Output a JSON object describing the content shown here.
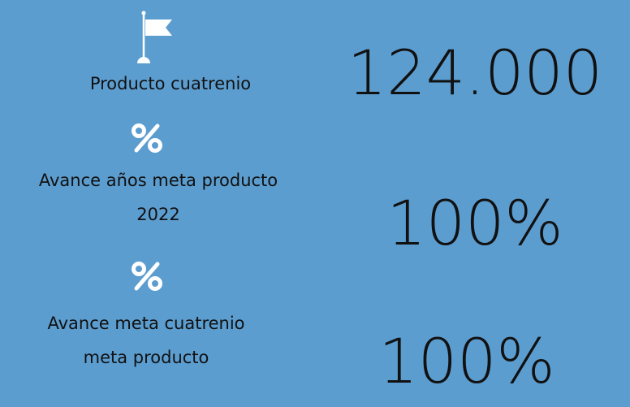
{
  "items": [
    {
      "label": "Producto cuatrenio",
      "value": "124.000"
    },
    {
      "label": "Avance años meta producto 2022",
      "value": "100%"
    },
    {
      "label": "Avance meta cuatrenio meta producto",
      "value": "100%"
    }
  ]
}
